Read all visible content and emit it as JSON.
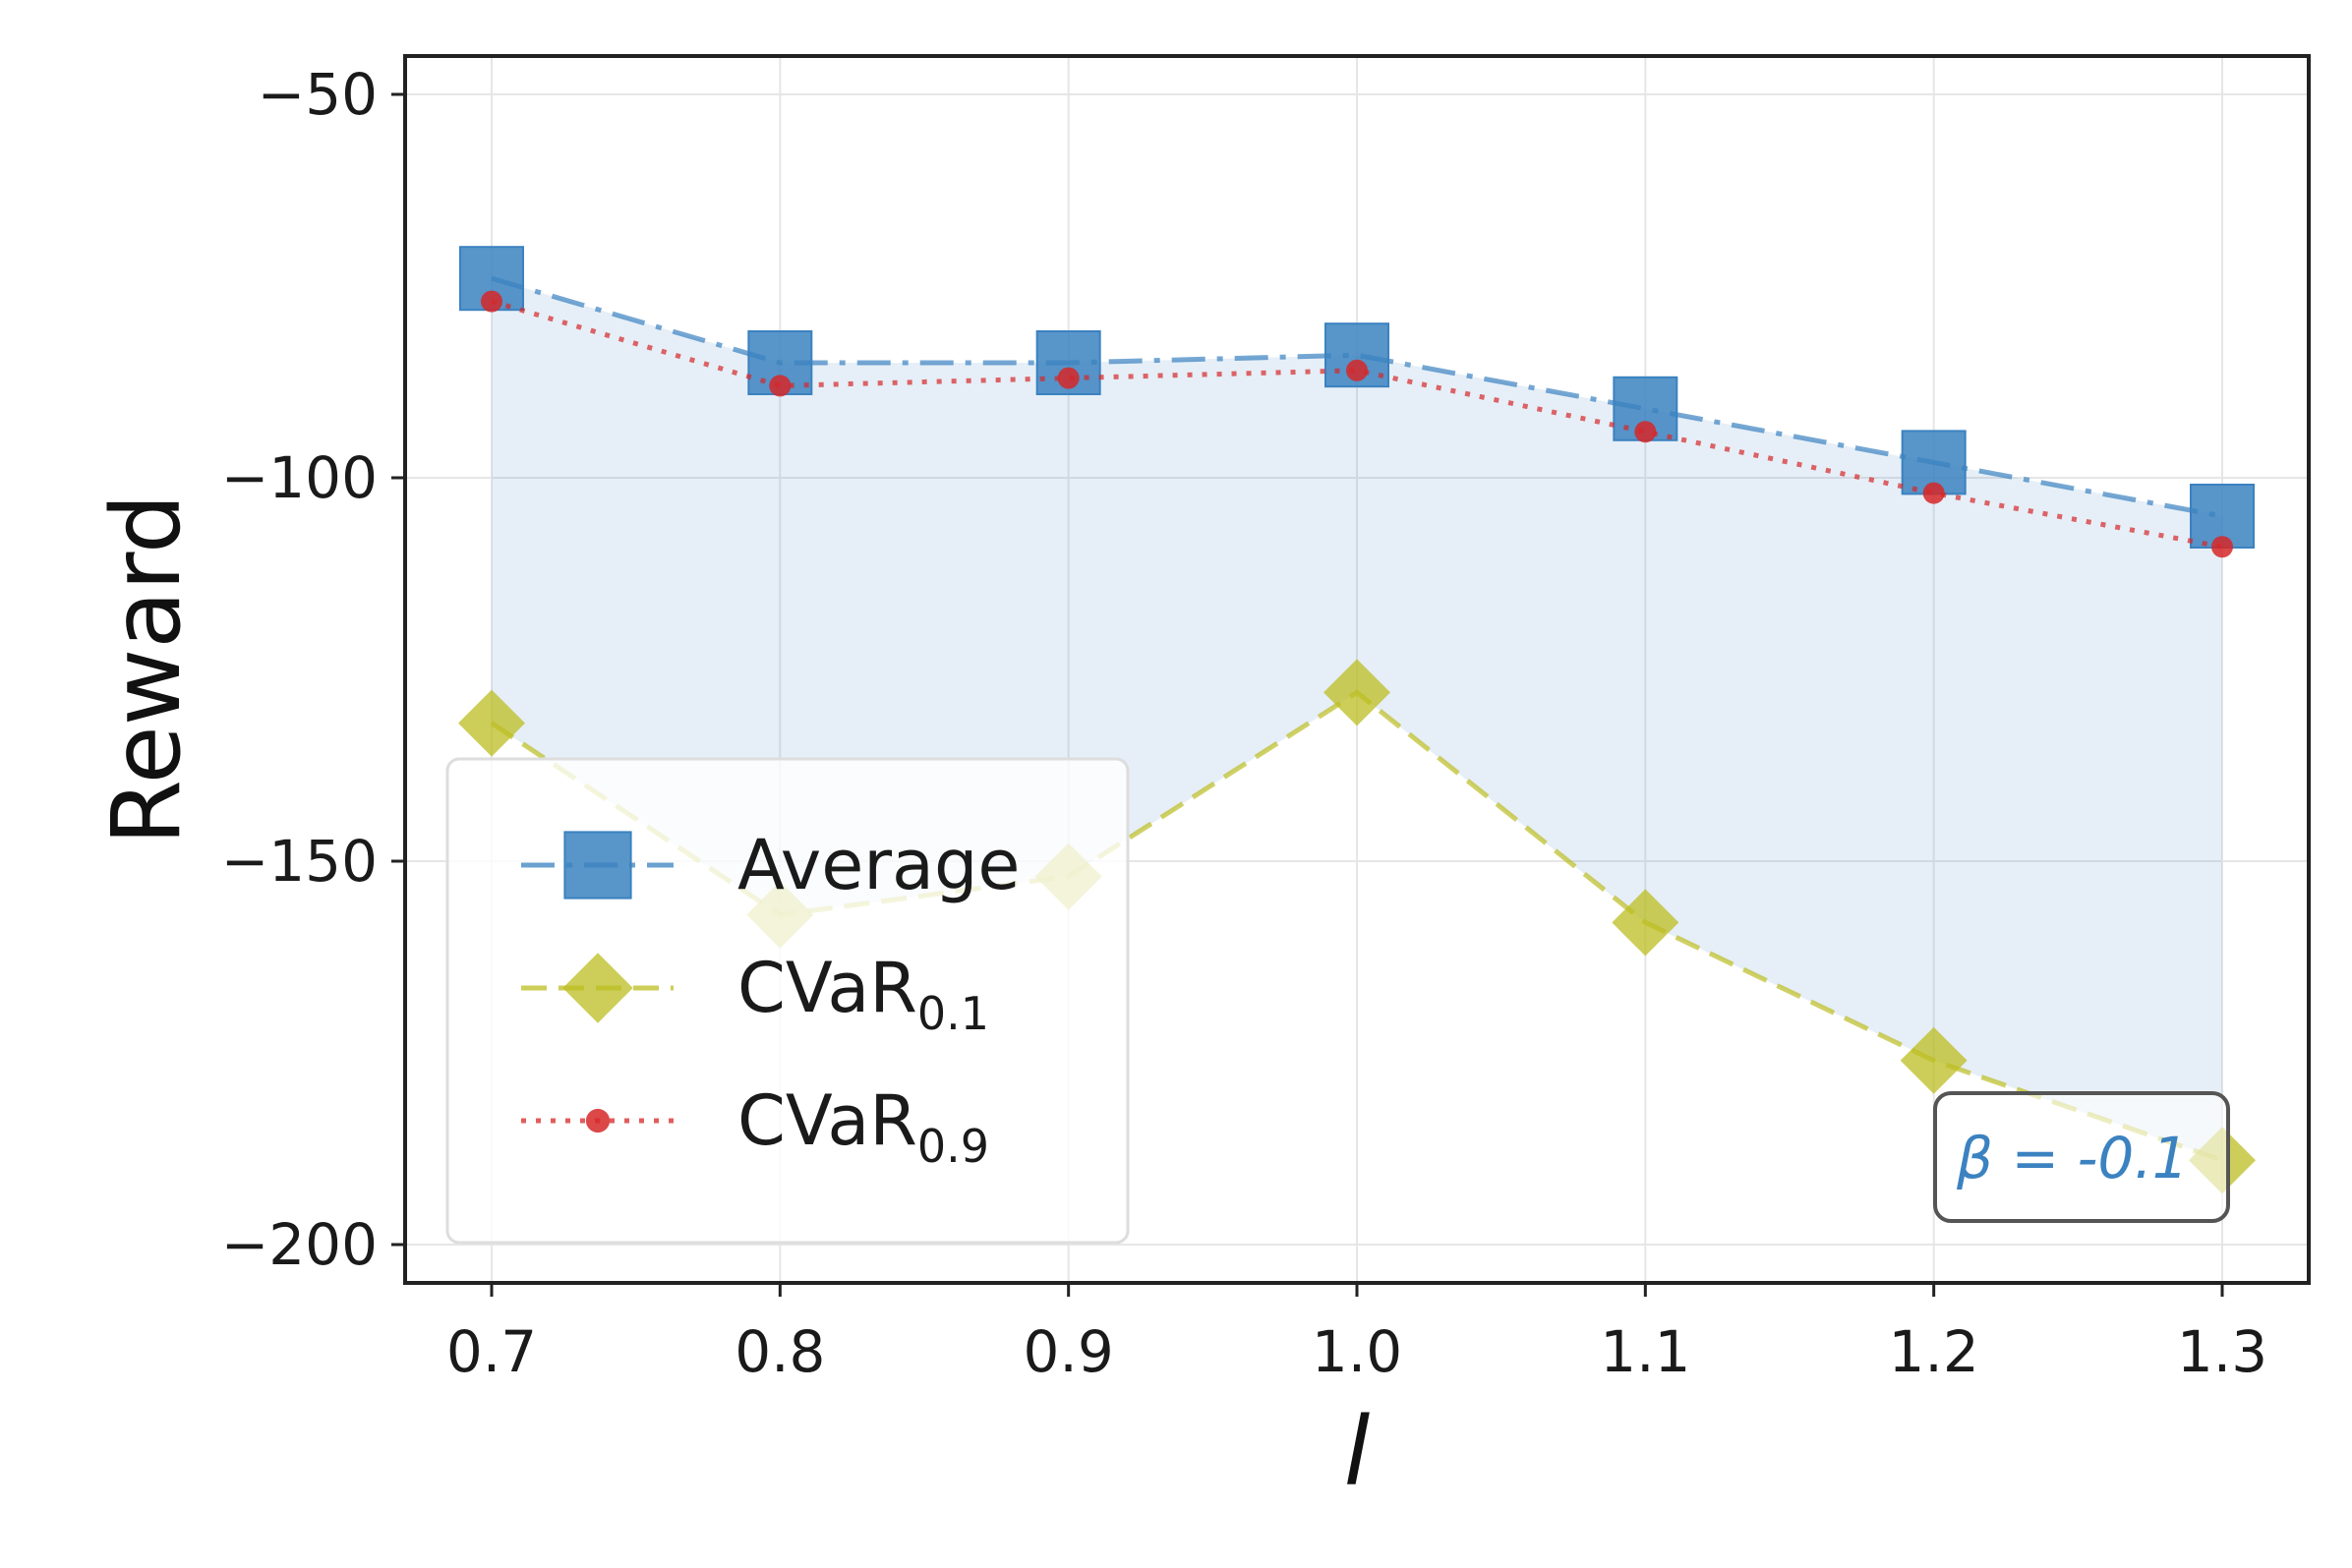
{
  "chart_data": {
    "type": "line",
    "title": "",
    "xlabel": "l",
    "ylabel": "Reward",
    "x": [
      0.7,
      0.8,
      0.9,
      1.0,
      1.1,
      1.2,
      1.3
    ],
    "x_tick_labels": [
      "0.7",
      "0.8",
      "0.9",
      "1.0",
      "1.1",
      "1.2",
      "1.3"
    ],
    "y_ticks": [
      -50,
      -100,
      -150,
      -200
    ],
    "y_tick_labels": [
      "−50",
      "−100",
      "−150",
      "−200"
    ],
    "xlim": [
      0.67,
      1.33
    ],
    "ylim": [
      -205,
      -45
    ],
    "grid": true,
    "legend_position": "lower-left",
    "series": [
      {
        "name": "Average",
        "legend_main": "Average",
        "legend_sub": "",
        "color": "#3b82c0",
        "marker": "square",
        "linestyle": "dashdot",
        "values": [
          -74,
          -85,
          -85,
          -84,
          -91,
          -98,
          -105
        ]
      },
      {
        "name": "CVaR_0.1",
        "legend_main": "CVaR",
        "legend_sub": "0.1",
        "color": "#bcbd22",
        "marker": "diamond",
        "linestyle": "dashed",
        "values": [
          -132,
          -157,
          -152,
          -128,
          -158,
          -176,
          -189
        ]
      },
      {
        "name": "CVaR_0.9",
        "legend_main": "CVaR",
        "legend_sub": "0.9",
        "color": "#d62728",
        "marker": "dot",
        "linestyle": "dotted",
        "values": [
          -77,
          -88,
          -87,
          -86,
          -94,
          -102,
          -109
        ]
      }
    ],
    "shaded_band": {
      "between": [
        "Average",
        "CVaR_0.1"
      ],
      "color": "#3b82c0"
    },
    "annotation": {
      "text": "β = -0.1",
      "position": "bottom-right",
      "color": "#3b82c0"
    }
  }
}
